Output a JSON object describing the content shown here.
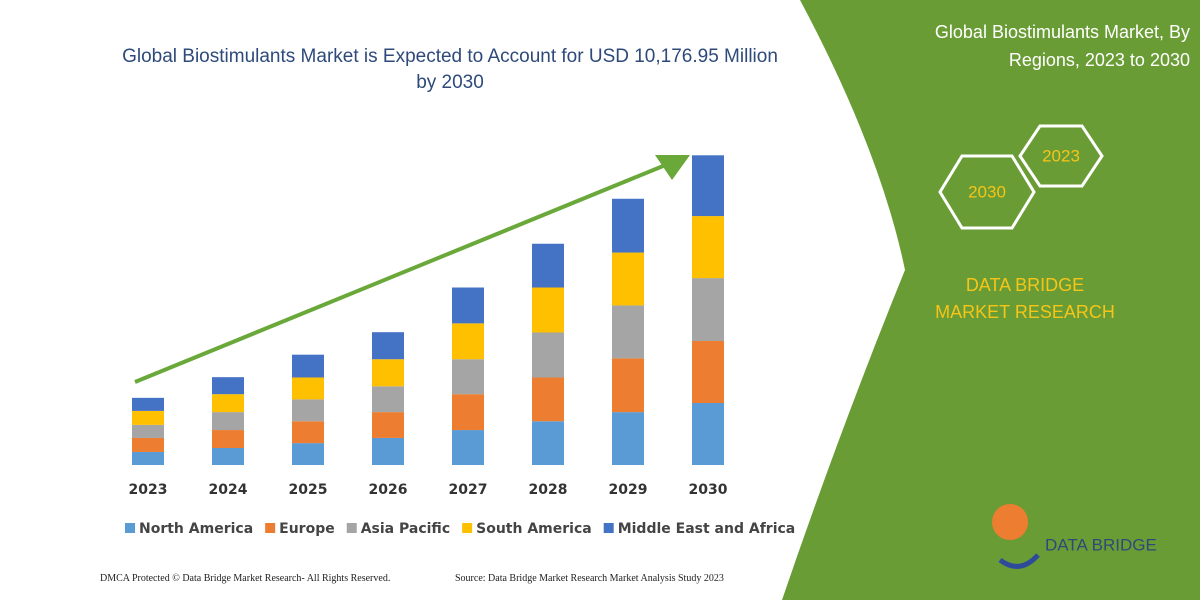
{
  "chart_data": {
    "type": "stacked_bar",
    "title": "Global Biostimulants Market is Expected to Account for USD 10,176.95 Million by 2030",
    "categories": [
      "2023",
      "2024",
      "2025",
      "2026",
      "2027",
      "2028",
      "2029",
      "2030"
    ],
    "series": [
      {
        "name": "North America",
        "color": "#5b9bd5",
        "values": [
          430,
          560,
          720,
          890,
          1150,
          1440,
          1740,
          2040
        ]
      },
      {
        "name": "Europe",
        "color": "#ed7d31",
        "values": [
          460,
          590,
          720,
          850,
          1180,
          1440,
          1770,
          2040
        ]
      },
      {
        "name": "Asia Pacific",
        "color": "#a5a5a5",
        "values": [
          430,
          590,
          720,
          850,
          1150,
          1480,
          1740,
          2070
        ]
      },
      {
        "name": "South America",
        "color": "#ffc000",
        "values": [
          460,
          590,
          720,
          890,
          1180,
          1480,
          1740,
          2040
        ]
      },
      {
        "name": "Middle East and Africa",
        "color": "#4472c4",
        "values": [
          430,
          560,
          750,
          890,
          1180,
          1440,
          1770,
          2000
        ]
      }
    ],
    "ylim": [
      0,
      10200
    ],
    "legend": "bottom"
  },
  "side_panel": {
    "title": "Global Biostimulants Market, By Regions, 2023 to 2030",
    "hexagons": [
      "2023",
      "2030"
    ],
    "brand": "DATA BRIDGE MARKET RESEARCH",
    "logo": "DATA BRIDGE"
  },
  "footer": {
    "left": "DMCA Protected © Data Bridge Market Research-  All Rights Reserved.",
    "right": "Source: Data Bridge Market Research  Market Analysis Study 2023"
  }
}
